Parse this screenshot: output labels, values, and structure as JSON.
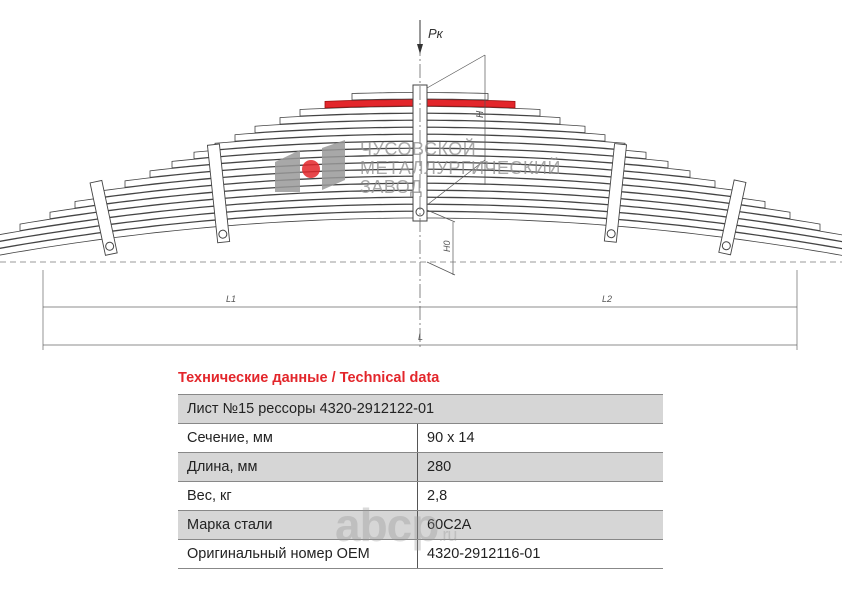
{
  "drawing": {
    "load_label": "Pк",
    "height_label": "H",
    "h0_label": "H0",
    "l1_label": "L1",
    "l2_label": "L2",
    "l_label": "L",
    "highlight_color": "#e3262b"
  },
  "logo": {
    "lines": [
      "ЧУСОВСКОЙ",
      "МЕТАЛЛУРГИЧЕСКИЙ",
      "ЗАВОД"
    ]
  },
  "table": {
    "title": "Технические данные / Technical data",
    "header": "Лист №15 рессоры 4320-2912122-01",
    "rows": [
      {
        "label": "Сечение, мм",
        "value": "90 x 14"
      },
      {
        "label": "Длина, мм",
        "value": "280"
      },
      {
        "label": "Вес, кг",
        "value": "2,8"
      },
      {
        "label": "Марка стали",
        "value": "60С2А"
      },
      {
        "label": "Оригинальный номер OEM",
        "value": "4320-2912116-01"
      }
    ]
  },
  "watermark": {
    "main": "abcp",
    "suffix": ".ru"
  }
}
